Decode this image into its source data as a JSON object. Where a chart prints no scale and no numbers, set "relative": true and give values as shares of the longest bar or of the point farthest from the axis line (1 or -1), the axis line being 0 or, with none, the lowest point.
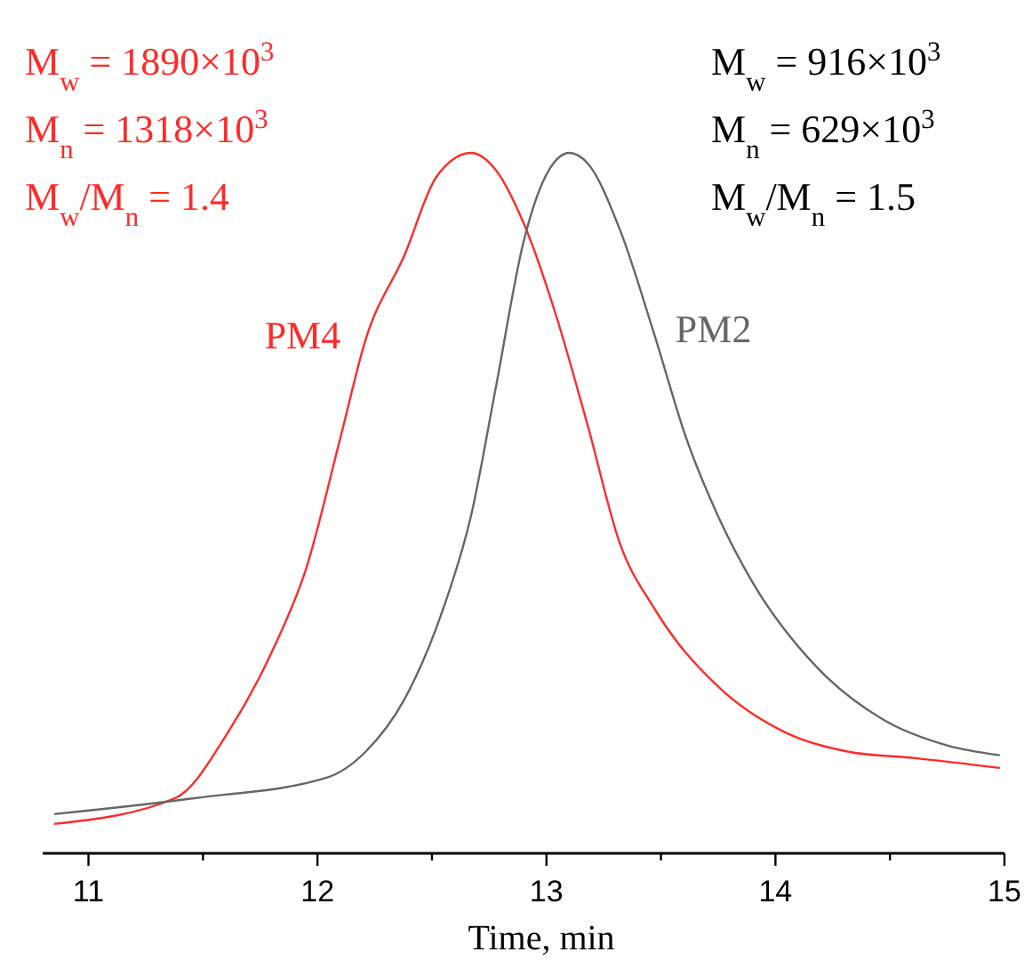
{
  "chart_data": {
    "type": "line",
    "relative": true,
    "xlabel": "Time, min",
    "xlim": [
      10.8,
      15
    ],
    "xticks": [
      11,
      {
        "value": 11.5,
        "label": null
      },
      12,
      {
        "value": 12.5,
        "label": null
      },
      13,
      {
        "value": 13.5,
        "label": null
      },
      14,
      {
        "value": 14.5,
        "label": null
      },
      15
    ],
    "grid": false,
    "marker": "none",
    "line_style": "solid",
    "annotations": [
      "M$_{w}$ = 1890×10$^{3}$",
      "M$_{n}$ = 1318×10$^{3}$",
      "M$_{w}$/M$_{n}$ = 1.4",
      "M$_{w}$ = 916×10$^{3}$",
      "M$_{n}$ = 629×10$^{3}$",
      "M$_{w}$/M$_{n}$ = 1.5"
    ],
    "series": [
      {
        "name": "PM4",
        "color": "#ff2a2a",
        "x": [
          10.85,
          11.38,
          11.61,
          11.81,
          11.95,
          12.1,
          12.21,
          12.38,
          12.52,
          12.67,
          12.78,
          12.9,
          13.04,
          13.18,
          13.32,
          13.47,
          13.75,
          14.04,
          14.32,
          14.61,
          14.98
        ],
        "values": [
          0.042,
          0.079,
          0.173,
          0.294,
          0.406,
          0.593,
          0.733,
          0.854,
          0.966,
          1,
          0.975,
          0.9,
          0.77,
          0.611,
          0.443,
          0.35,
          0.238,
          0.173,
          0.145,
          0.136,
          0.122
        ]
      },
      {
        "name": "PM2",
        "color": "#666666",
        "x": [
          10.85,
          11.47,
          12.04,
          12.21,
          12.38,
          12.55,
          12.67,
          12.78,
          12.9,
          13.01,
          13.1,
          13.18,
          13.32,
          13.47,
          13.61,
          13.75,
          13.9,
          14.18,
          14.47,
          14.75,
          14.98
        ],
        "values": [
          0.056,
          0.079,
          0.108,
          0.145,
          0.22,
          0.35,
          0.481,
          0.667,
          0.873,
          0.975,
          1,
          0.985,
          0.891,
          0.742,
          0.593,
          0.481,
          0.387,
          0.266,
          0.191,
          0.154,
          0.14
        ]
      }
    ]
  }
}
